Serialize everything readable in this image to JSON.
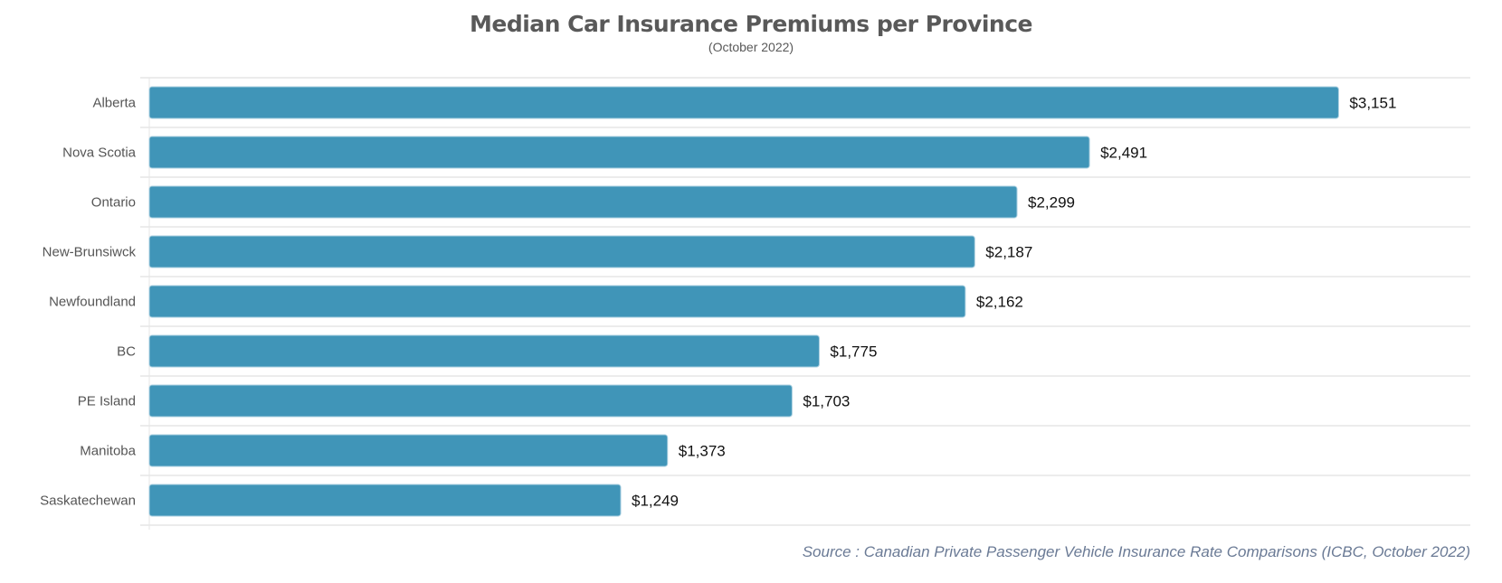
{
  "chart_data": {
    "type": "bar",
    "orientation": "horizontal",
    "title": "Median Car Insurance Premiums per Province",
    "subtitle": "(October 2022)",
    "categories": [
      "Alberta",
      "Nova Scotia",
      "Ontario",
      "New-Brunsiwck",
      "Newfoundland",
      "BC",
      "PE Island",
      "Manitoba",
      "Saskatechewan"
    ],
    "values": [
      3151,
      2491,
      2299,
      2187,
      2162,
      1775,
      1703,
      1373,
      1249
    ],
    "data_labels": [
      "$3,151",
      "$2,491",
      "$2,299",
      "$2,187",
      "$2,162",
      "$1,775",
      "$1,703",
      "$1,373",
      "$1,249"
    ],
    "xlim": [
      0,
      3500
    ],
    "grid": "horizontal lines between categories",
    "legend": "none",
    "bar_color": "#4095b8",
    "source": "Source : Canadian Private Passenger Vehicle Insurance Rate Comparisons (ICBC, October 2022)"
  }
}
